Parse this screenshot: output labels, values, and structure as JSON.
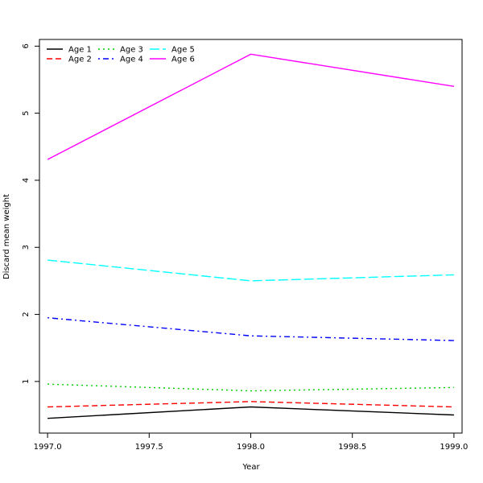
{
  "chart_data": {
    "type": "line",
    "title": "",
    "xlabel": "Year",
    "ylabel": "Discard mean weight",
    "xlim": [
      1996.96,
      1999.04
    ],
    "ylim": [
      0.23,
      6.1
    ],
    "x_ticks": [
      "1997.0",
      "1997.5",
      "1998.0",
      "1998.5",
      "1999.0"
    ],
    "y_ticks": [
      "1",
      "2",
      "3",
      "4",
      "5",
      "6"
    ],
    "x": [
      1997.0,
      1998.0,
      1999.0
    ],
    "grid": false,
    "legend_position": "top-left",
    "series": [
      {
        "name": "Age 1",
        "values": [
          0.45,
          0.62,
          0.5
        ],
        "color": "#000000",
        "dash": "solid"
      },
      {
        "name": "Age 2",
        "values": [
          0.62,
          0.7,
          0.62
        ],
        "color": "#ff0000",
        "dash": "dashed"
      },
      {
        "name": "Age 3",
        "values": [
          0.96,
          0.86,
          0.91
        ],
        "color": "#00cd00",
        "dash": "dotted"
      },
      {
        "name": "Age 4",
        "values": [
          1.95,
          1.68,
          1.61
        ],
        "color": "#0000ff",
        "dash": "dotdash"
      },
      {
        "name": "Age 5",
        "values": [
          2.81,
          2.5,
          2.59
        ],
        "color": "#00ffff",
        "dash": "longdash"
      },
      {
        "name": "Age 6",
        "values": [
          4.31,
          5.88,
          5.4
        ],
        "color": "#ff00ff",
        "dash": "solid"
      }
    ]
  }
}
